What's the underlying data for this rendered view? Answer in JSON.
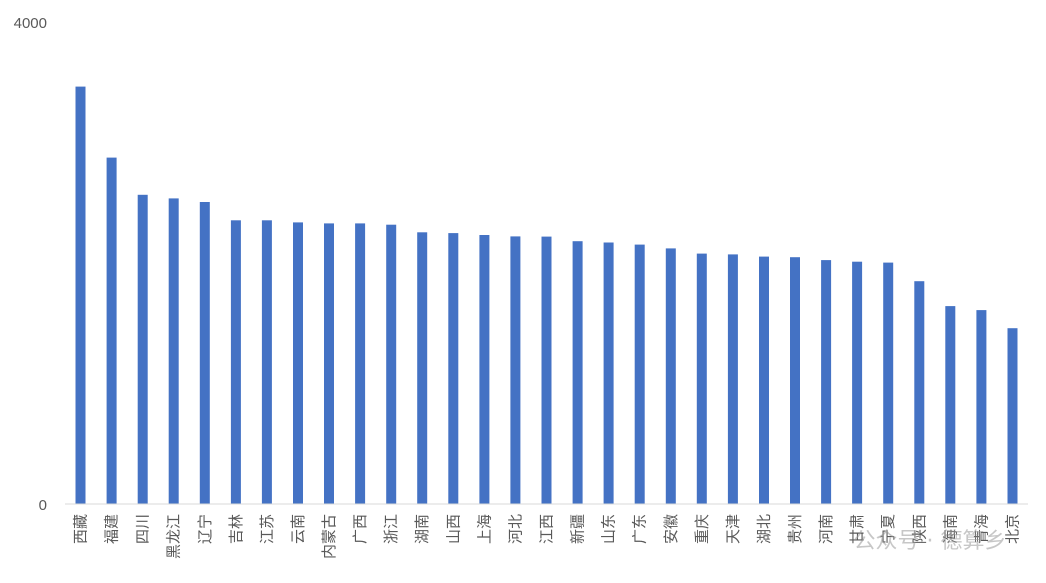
{
  "chart_data": {
    "type": "bar",
    "title": "",
    "xlabel": "",
    "ylabel": "",
    "ylim": [
      0,
      4000
    ],
    "y_ticks": [
      "0",
      "4000"
    ],
    "grid": false,
    "legend": "none",
    "bar_color": "#4472C4",
    "categories": [
      "西藏",
      "福建",
      "四川",
      "黑龙江",
      "辽宁",
      "吉林",
      "江苏",
      "云南",
      "内蒙古",
      "广西",
      "浙江",
      "湖南",
      "山西",
      "上海",
      "河北",
      "江西",
      "新疆",
      "山东",
      "广东",
      "安徽",
      "重庆",
      "天津",
      "湖北",
      "贵州",
      "河南",
      "甘肃",
      "宁夏",
      "陕西",
      "海南",
      "青海",
      "北京"
    ],
    "values": [
      3464,
      2875,
      2566,
      2536,
      2506,
      2354,
      2354,
      2337,
      2329,
      2329,
      2318,
      2255,
      2248,
      2232,
      2221,
      2219,
      2181,
      2170,
      2153,
      2121,
      2078,
      2071,
      2053,
      2048,
      2024,
      2011,
      2003,
      1849,
      1642,
      1609,
      1459
    ]
  },
  "watermark": "公众号 · 德算乡"
}
